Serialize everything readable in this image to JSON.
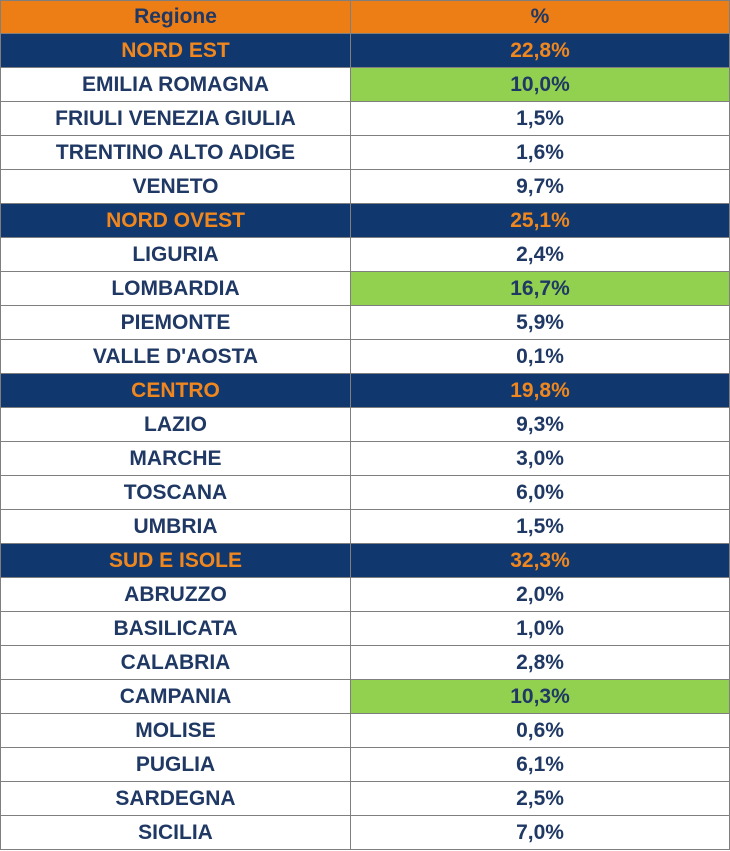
{
  "header": {
    "col_region": "Regione",
    "col_pct": "%"
  },
  "colors": {
    "header_bg": "#ED7D15",
    "group_bg": "#11386E",
    "group_text": "#F0871E",
    "text": "#1F3864",
    "highlight": "#92D050"
  },
  "rows": [
    {
      "type": "group",
      "region": "NORD EST",
      "pct": "22,8%"
    },
    {
      "type": "item",
      "region": "EMILIA ROMAGNA",
      "pct": "10,0%",
      "highlight": true
    },
    {
      "type": "item",
      "region": "FRIULI VENEZIA GIULIA",
      "pct": "1,5%"
    },
    {
      "type": "item",
      "region": "TRENTINO ALTO ADIGE",
      "pct": "1,6%"
    },
    {
      "type": "item",
      "region": "VENETO",
      "pct": "9,7%"
    },
    {
      "type": "group",
      "region": "NORD OVEST",
      "pct": "25,1%"
    },
    {
      "type": "item",
      "region": "LIGURIA",
      "pct": "2,4%"
    },
    {
      "type": "item",
      "region": "LOMBARDIA",
      "pct": "16,7%",
      "highlight": true
    },
    {
      "type": "item",
      "region": "PIEMONTE",
      "pct": "5,9%"
    },
    {
      "type": "item",
      "region": "VALLE D'AOSTA",
      "pct": "0,1%"
    },
    {
      "type": "group",
      "region": "CENTRO",
      "pct": "19,8%"
    },
    {
      "type": "item",
      "region": "LAZIO",
      "pct": "9,3%"
    },
    {
      "type": "item",
      "region": "MARCHE",
      "pct": "3,0%"
    },
    {
      "type": "item",
      "region": "TOSCANA",
      "pct": "6,0%"
    },
    {
      "type": "item",
      "region": "UMBRIA",
      "pct": "1,5%"
    },
    {
      "type": "group",
      "region": "SUD E ISOLE",
      "pct": "32,3%"
    },
    {
      "type": "item",
      "region": "ABRUZZO",
      "pct": "2,0%"
    },
    {
      "type": "item",
      "region": "BASILICATA",
      "pct": "1,0%"
    },
    {
      "type": "item",
      "region": "CALABRIA",
      "pct": "2,8%"
    },
    {
      "type": "item",
      "region": "CAMPANIA",
      "pct": "10,3%",
      "highlight": true
    },
    {
      "type": "item",
      "region": "MOLISE",
      "pct": "0,6%"
    },
    {
      "type": "item",
      "region": "PUGLIA",
      "pct": "6,1%"
    },
    {
      "type": "item",
      "region": "SARDEGNA",
      "pct": "2,5%"
    },
    {
      "type": "item",
      "region": "SICILIA",
      "pct": "7,0%"
    }
  ]
}
